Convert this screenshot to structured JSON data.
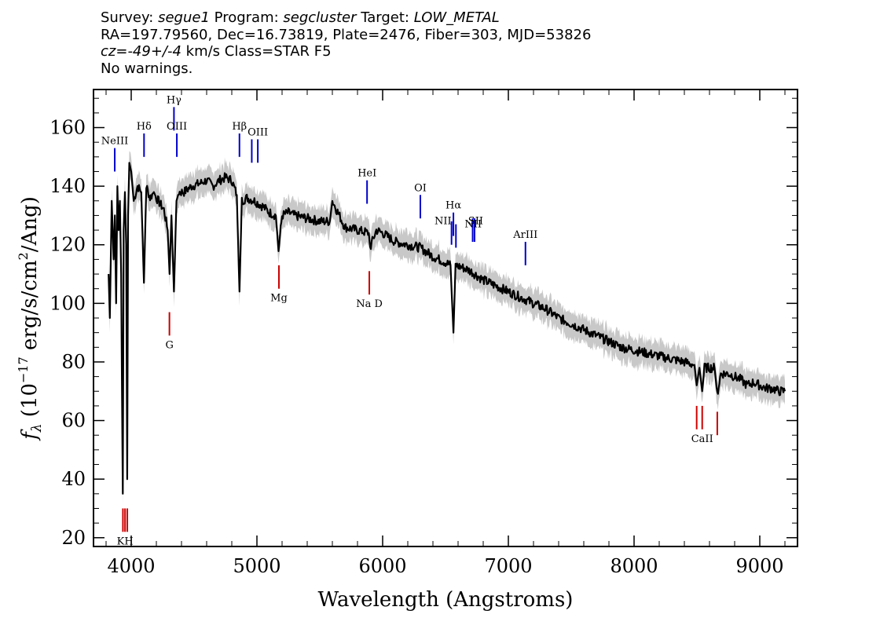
{
  "header": {
    "survey_label": "Survey:",
    "survey": "segue1",
    "program_label": "Program:",
    "program": "segcluster",
    "target_label": "Target:",
    "target": "LOW_METAL",
    "line2": "RA=197.79560, Dec=16.73819, Plate=2476, Fiber=303, MJD=53826",
    "cz_label": "cz=",
    "cz_value": "-49+/-4",
    "cz_rest": " km/s Class=STAR F5",
    "line4": "No warnings."
  },
  "chart_data": {
    "type": "line",
    "title": "",
    "xlabel": "Wavelength (Angstroms)",
    "ylabel": "f_λ (10^-17 erg/s/cm^2/Ang)",
    "ylabel_parts": {
      "f": "f",
      "sub": "λ",
      "pre": "(10",
      "exp": "−17",
      "mid": " erg/s/cm",
      "exp2": "2",
      "post": "/Ang)"
    },
    "xlim": [
      3700,
      9300
    ],
    "ylim": [
      17,
      173
    ],
    "x_ticks": [
      "4000",
      "5000",
      "6000",
      "7000",
      "8000",
      "9000"
    ],
    "x_tick_values": [
      4000,
      5000,
      6000,
      7000,
      8000,
      9000
    ],
    "y_ticks": [
      "20",
      "40",
      "60",
      "80",
      "100",
      "120",
      "140",
      "160"
    ],
    "y_tick_values": [
      20,
      40,
      60,
      80,
      100,
      120,
      140,
      160
    ],
    "series": [
      {
        "color": "#000000",
        "x": [
          3820,
          3830,
          3845,
          3860,
          3870,
          3880,
          3890,
          3900,
          3910,
          3920,
          3933,
          3940,
          3950,
          3960,
          3968,
          3975,
          3985,
          4000,
          4020,
          4050,
          4080,
          4101,
          4120,
          4150,
          4180,
          4200,
          4230,
          4260,
          4290,
          4305,
          4320,
          4340,
          4360,
          4380,
          4420,
          4480,
          4550,
          4600,
          4650,
          4700,
          4750,
          4800,
          4840,
          4861,
          4880,
          4920,
          4980,
          5050,
          5100,
          5150,
          5172,
          5200,
          5250,
          5300,
          5400,
          5500,
          5580,
          5600,
          5700,
          5800,
          5890,
          5900,
          5950,
          6000,
          6100,
          6200,
          6300,
          6400,
          6500,
          6540,
          6563,
          6580,
          6650,
          6700,
          6800,
          6900,
          7000,
          7100,
          7200,
          7300,
          7400,
          7500,
          7600,
          7700,
          7800,
          7900,
          8000,
          8100,
          8200,
          8300,
          8400,
          8480,
          8498,
          8520,
          8542,
          8560,
          8600,
          8640,
          8662,
          8690,
          8750,
          8800,
          8850,
          8900,
          8950,
          9000,
          9050,
          9100,
          9150,
          9200
        ],
        "y": [
          110,
          95,
          135,
          115,
          130,
          100,
          140,
          125,
          135,
          110,
          35,
          125,
          138,
          120,
          40,
          130,
          148,
          145,
          135,
          140,
          138,
          107,
          140,
          136,
          138,
          136,
          134,
          132,
          125,
          110,
          130,
          104,
          135,
          138,
          138,
          140,
          141,
          142,
          140,
          142,
          143,
          142,
          137,
          104,
          135,
          136,
          135,
          133,
          131,
          130,
          118,
          130,
          131,
          130,
          129,
          128,
          128,
          135,
          126,
          125,
          124,
          119,
          125,
          124,
          121,
          120,
          119,
          116,
          114,
          113,
          90,
          113,
          112,
          111,
          108,
          106,
          104,
          102,
          100,
          98,
          95,
          93,
          91,
          89,
          87,
          85,
          84,
          83,
          82,
          81,
          80,
          79,
          72,
          78,
          70,
          78,
          78,
          78,
          69,
          76,
          76,
          75,
          74,
          72,
          73,
          72,
          71,
          71,
          70,
          70
        ]
      }
    ],
    "lines": [
      {
        "label": "NeIII",
        "wavelength": 3869,
        "color": "#0000cc",
        "y_top": 153,
        "y_bottom": 145,
        "label_pos": "above"
      },
      {
        "label": "Hδ",
        "wavelength": 4102,
        "color": "#0000cc",
        "y_top": 158,
        "y_bottom": 150,
        "label_pos": "above"
      },
      {
        "label": "Hγ",
        "wavelength": 4340,
        "color": "#0000cc",
        "y_top": 167,
        "y_bottom": 159,
        "label_pos": "above"
      },
      {
        "label": "OIII",
        "wavelength": 4363,
        "color": "#0000cc",
        "y_top": 158,
        "y_bottom": 150,
        "label_pos": "above"
      },
      {
        "label": "Hβ",
        "wavelength": 4861,
        "color": "#0000cc",
        "y_top": 158,
        "y_bottom": 150,
        "label_pos": "above"
      },
      {
        "label": "OIII",
        "wavelength": 4959,
        "color": "#0000cc",
        "y_top": 156,
        "y_bottom": 148,
        "label_pos": "none"
      },
      {
        "label": "OIII",
        "wavelength": 5007,
        "color": "#0000cc",
        "y_top": 156,
        "y_bottom": 148,
        "label_pos": "above"
      },
      {
        "label": "HeI",
        "wavelength": 5876,
        "color": "#0000cc",
        "y_top": 142,
        "y_bottom": 134,
        "label_pos": "above"
      },
      {
        "label": "OI",
        "wavelength": 6300,
        "color": "#0000cc",
        "y_top": 137,
        "y_bottom": 129,
        "label_pos": "above"
      },
      {
        "label": "NII",
        "wavelength": 6548,
        "color": "#0000cc",
        "y_top": 128,
        "y_bottom": 120,
        "label_pos": "none"
      },
      {
        "label": "Hα",
        "wavelength": 6563,
        "color": "#0000cc",
        "y_top": 131,
        "y_bottom": 123,
        "label_pos": "above"
      },
      {
        "label": "NII",
        "wavelength": 6583,
        "color": "#0000cc",
        "y_top": 127,
        "y_bottom": 119,
        "label_pos": "none"
      },
      {
        "label": "SII",
        "wavelength": 6716,
        "color": "#0000cc",
        "y_top": 129,
        "y_bottom": 121,
        "label_pos": "none"
      },
      {
        "label": "SII",
        "wavelength": 6731,
        "color": "#0000cc",
        "y_top": 129,
        "y_bottom": 121,
        "label_pos": "none"
      },
      {
        "label": "ArIII",
        "wavelength": 7136,
        "color": "#0000cc",
        "y_top": 121,
        "y_bottom": 113,
        "label_pos": "above"
      },
      {
        "label": "G",
        "wavelength": 4304,
        "color": "#cc0000",
        "y_top": 97,
        "y_bottom": 89,
        "label_pos": "below"
      },
      {
        "label": "Mg",
        "wavelength": 5175,
        "color": "#cc0000",
        "y_top": 113,
        "y_bottom": 105,
        "label_pos": "below"
      },
      {
        "label": "Na D",
        "wavelength": 5894,
        "color": "#cc0000",
        "y_top": 111,
        "y_bottom": 103,
        "label_pos": "below"
      },
      {
        "label": "CaII",
        "wavelength": 8498,
        "color": "#cc0000",
        "y_top": 65,
        "y_bottom": 57,
        "label_pos": "none"
      },
      {
        "label": "CaII",
        "wavelength": 8542,
        "color": "#cc0000",
        "y_top": 65,
        "y_bottom": 57,
        "label_pos": "below"
      },
      {
        "label": "CaII",
        "wavelength": 8662,
        "color": "#cc0000",
        "y_top": 63,
        "y_bottom": 55,
        "label_pos": "none"
      },
      {
        "label": "KH",
        "wavelength": 3951,
        "color": "#cc0000",
        "y_top": 30,
        "y_bottom": 22,
        "label_pos": "below"
      },
      {
        "label": "K",
        "wavelength": 3934,
        "color": "#cc0000",
        "y_top": 30,
        "y_bottom": 22,
        "label_pos": "none"
      },
      {
        "label": "H",
        "wavelength": 3969,
        "color": "#cc0000",
        "y_top": 30,
        "y_bottom": 22,
        "label_pos": "none"
      }
    ],
    "extra_labels": [
      {
        "text": "NII",
        "wavelength": 6480,
        "y": 127
      },
      {
        "text": "NII",
        "wavelength": 6720,
        "y": 126
      },
      {
        "text": "SII",
        "wavelength": 6740,
        "y": 127
      }
    ]
  }
}
